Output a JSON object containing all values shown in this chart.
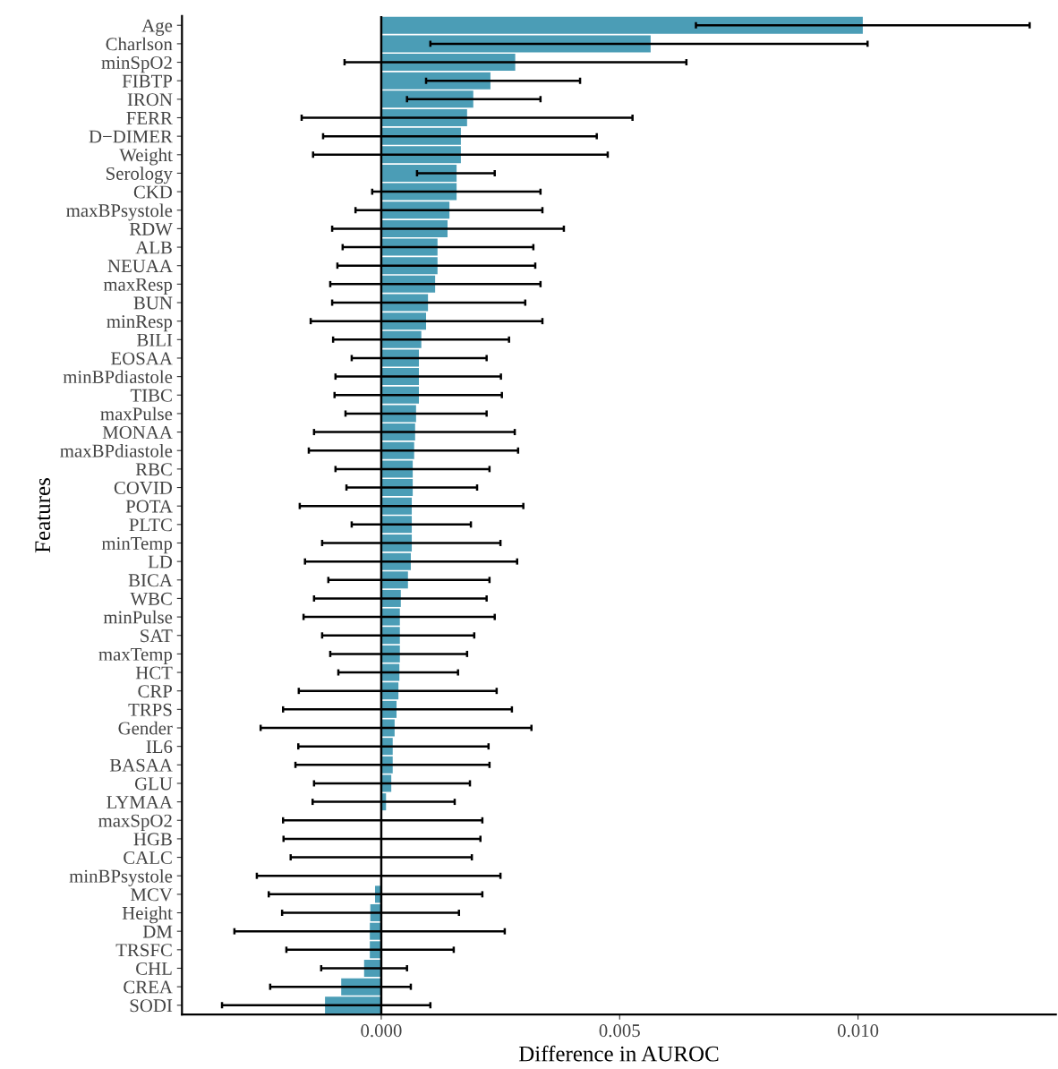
{
  "chart_data": {
    "type": "bar",
    "orientation": "horizontal",
    "xlabel": "Difference in AUROC",
    "ylabel": "Features",
    "categories": [
      "Age",
      "Charlson",
      "minSpO2",
      "FIBTP",
      "IRON",
      "FERR",
      "D−DIMER",
      "Weight",
      "Serology",
      "CKD",
      "maxBPsystole",
      "RDW",
      "ALB",
      "NEUAA",
      "maxResp",
      "BUN",
      "minResp",
      "BILI",
      "EOSAA",
      "minBPdiastole",
      "TIBC",
      "maxPulse",
      "MONAA",
      "maxBPdiastole",
      "RBC",
      "COVID",
      "POTA",
      "PLTC",
      "minTemp",
      "LD",
      "BICA",
      "WBC",
      "minPulse",
      "SAT",
      "maxTemp",
      "HCT",
      "CRP",
      "TRPS",
      "Gender",
      "IL6",
      "BASAA",
      "GLU",
      "LYMAA",
      "maxSpO2",
      "HGB",
      "CALC",
      "minBPsystole",
      "MCV",
      "Height",
      "DM",
      "TRSFC",
      "CHL",
      "CREA",
      "SODI"
    ],
    "values": [
      0.0101,
      0.00565,
      0.00281,
      0.00229,
      0.00193,
      0.0018,
      0.00167,
      0.00167,
      0.00158,
      0.00158,
      0.00143,
      0.00139,
      0.00118,
      0.00118,
      0.00113,
      0.00098,
      0.00094,
      0.00084,
      0.00079,
      0.00079,
      0.00079,
      0.00073,
      0.00071,
      0.00069,
      0.00066,
      0.00066,
      0.00064,
      0.00064,
      0.00064,
      0.00062,
      0.00056,
      0.00041,
      0.00039,
      0.00039,
      0.00039,
      0.00038,
      0.00036,
      0.00032,
      0.00028,
      0.00024,
      0.00024,
      0.00021,
      0.0001,
      0.0,
      0.0,
      0.0,
      0.0,
      -0.00013,
      -0.00023,
      -0.00024,
      -0.00024,
      -0.00036,
      -0.00084,
      -0.00118
    ],
    "errors": [
      [
        0.0066,
        0.0136
      ],
      [
        0.00103,
        0.0102
      ],
      [
        -0.00077,
        0.0064
      ],
      [
        0.00094,
        0.00417
      ],
      [
        0.00054,
        0.00334
      ],
      [
        -0.00167,
        0.00527
      ],
      [
        -0.00122,
        0.00452
      ],
      [
        -0.00143,
        0.00475
      ],
      [
        0.00075,
        0.00238
      ],
      [
        -0.00019,
        0.00334
      ],
      [
        -0.00054,
        0.00338
      ],
      [
        -0.00103,
        0.00383
      ],
      [
        -0.00081,
        0.00319
      ],
      [
        -0.00092,
        0.00323
      ],
      [
        -0.00107,
        0.00334
      ],
      [
        -0.00103,
        0.00302
      ],
      [
        -0.00148,
        0.00338
      ],
      [
        -0.00101,
        0.00268
      ],
      [
        -0.00062,
        0.00221
      ],
      [
        -0.00096,
        0.00251
      ],
      [
        -0.00098,
        0.00253
      ],
      [
        -0.00075,
        0.00221
      ],
      [
        -0.00141,
        0.0028
      ],
      [
        -0.00152,
        0.00287
      ],
      [
        -0.00096,
        0.00227
      ],
      [
        -0.00073,
        0.00201
      ],
      [
        -0.00171,
        0.00298
      ],
      [
        -0.00062,
        0.00188
      ],
      [
        -0.00124,
        0.0025
      ],
      [
        -0.0016,
        0.00285
      ],
      [
        -0.00111,
        0.00227
      ],
      [
        -0.00141,
        0.00221
      ],
      [
        -0.00163,
        0.00238
      ],
      [
        -0.00124,
        0.00195
      ],
      [
        -0.00107,
        0.0018
      ],
      [
        -0.0009,
        0.00161
      ],
      [
        -0.00173,
        0.00242
      ],
      [
        -0.00206,
        0.00274
      ],
      [
        -0.00253,
        0.00315
      ],
      [
        -0.00174,
        0.00225
      ],
      [
        -0.0018,
        0.00227
      ],
      [
        -0.00141,
        0.00186
      ],
      [
        -0.00144,
        0.00154
      ],
      [
        -0.00206,
        0.00212
      ],
      [
        -0.00205,
        0.00208
      ],
      [
        -0.0019,
        0.0019
      ],
      [
        -0.00261,
        0.0025
      ],
      [
        -0.00236,
        0.00212
      ],
      [
        -0.00208,
        0.00163
      ],
      [
        -0.00308,
        0.00259
      ],
      [
        -0.00199,
        0.00152
      ],
      [
        -0.00126,
        0.00054
      ],
      [
        -0.00233,
        0.00062
      ],
      [
        -0.00334,
        0.00103
      ]
    ],
    "color": "#4b9db6",
    "xlim": [
      -0.00418,
      0.01415
    ],
    "xticks": [
      {
        "value": 0,
        "label": "0.000"
      },
      {
        "value": 0.005,
        "label": "0.005"
      },
      {
        "value": 0.01,
        "label": "0.010"
      }
    ],
    "ref_lines": [
      {
        "axis": "x",
        "value": 0,
        "label": null,
        "color": "#000000"
      }
    ],
    "grid": false,
    "legend": false
  }
}
